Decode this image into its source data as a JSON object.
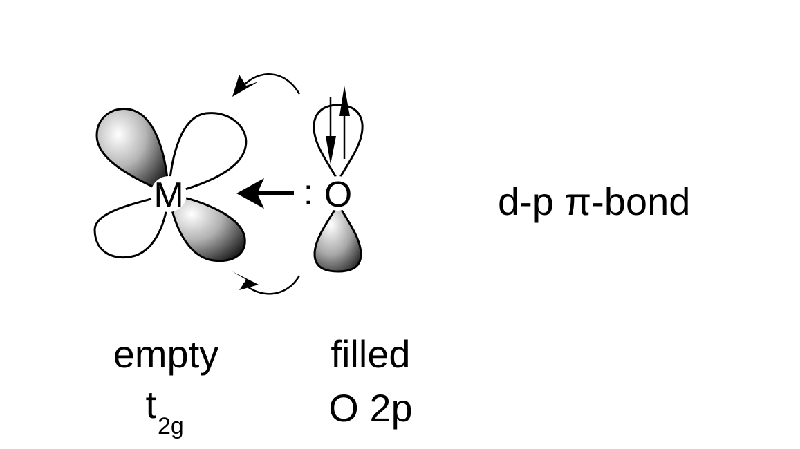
{
  "diagram": {
    "metal_symbol": "M",
    "oxygen_symbol": "O",
    "lone_pair": ":",
    "bond_type": "d-p π-bond",
    "metal_label": {
      "line1": "empty",
      "base": "t",
      "subscript": "2g"
    },
    "oxygen_label": {
      "line1": "filled",
      "line2": "O 2p"
    },
    "icons": [
      "metal-d-orbital",
      "oxygen-p-orbital",
      "donation-arrow",
      "electron-spin-up",
      "electron-spin-down",
      "curved-arrow-top",
      "curved-arrow-bottom"
    ]
  }
}
